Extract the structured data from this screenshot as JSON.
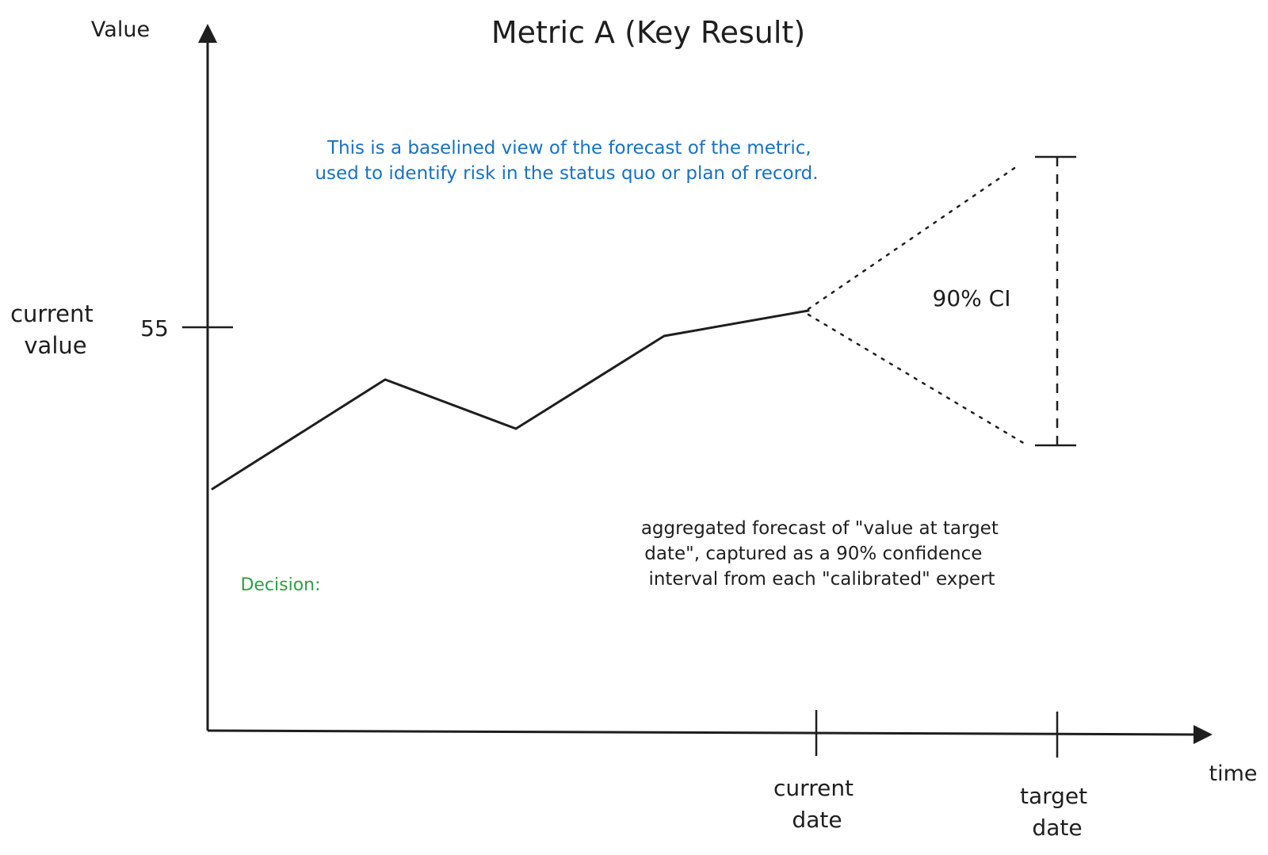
{
  "title": "Metric A (Key Result)",
  "y_axis_label": "Value",
  "x_axis_label": "time",
  "y_tick": {
    "label_lines": [
      "current",
      "value"
    ],
    "value": "55"
  },
  "x_ticks": [
    {
      "name": "current-date",
      "lines": [
        "current",
        "date"
      ]
    },
    {
      "name": "target-date",
      "lines": [
        "target",
        "date"
      ]
    }
  ],
  "description_lines": [
    "This is a baselined view of the forecast of the metric,",
    "used to identify risk in the status quo or plan of record."
  ],
  "ci_label": "90% CI",
  "forecast_note_lines": [
    "aggregated forecast of \"value at target",
    "date\", captured as a 90% confidence",
    "interval from each \"calibrated\" expert"
  ],
  "decision_label": "Decision:",
  "colors": {
    "ink": "#1e1e1e",
    "blue": "#1971c2",
    "green": "#2f9e44"
  }
}
